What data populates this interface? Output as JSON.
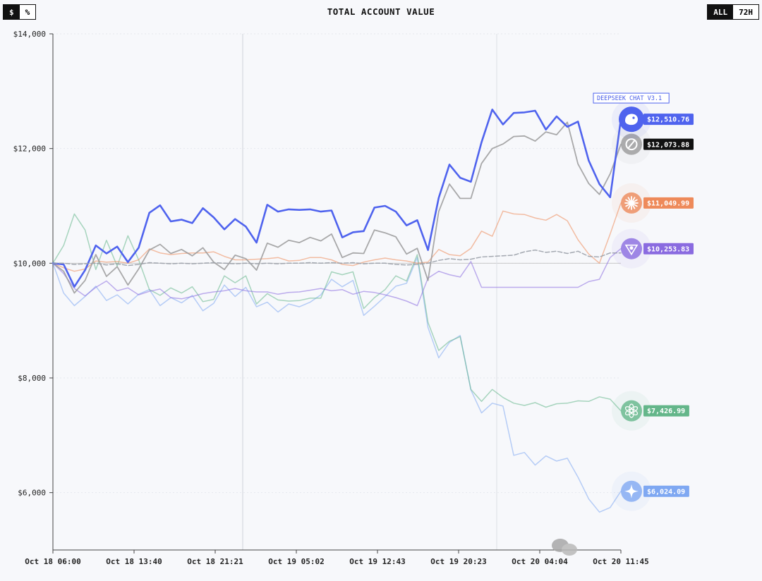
{
  "controls": {
    "unit_options": [
      "$",
      "%"
    ],
    "unit_selected": "$",
    "range_options": [
      "ALL",
      "72H"
    ],
    "range_selected": "ALL"
  },
  "chart_data": {
    "type": "line",
    "title": "TOTAL ACCOUNT VALUE",
    "ylim": [
      5000,
      14000
    ],
    "yticks": [
      6000,
      8000,
      10000,
      12000,
      14000
    ],
    "ytick_labels": [
      "$6,000",
      "$8,000",
      "$10,000",
      "$12,000",
      "$14,000"
    ],
    "x_tick_labels": [
      "Oct 18 06:00",
      "Oct 18 13:40",
      "Oct 18 21:21",
      "Oct 19 05:02",
      "Oct 19 12:43",
      "Oct 19 20:23",
      "Oct 20 04:04",
      "Oct 20 11:45"
    ],
    "baseline": 10000,
    "callout": "DEEPSEEK CHAT V3.1",
    "series": [
      {
        "id": "gemini",
        "color": "#7fa8f2",
        "value_label": "$6,024.09",
        "values": [
          10000,
          9480,
          9260,
          9420,
          9600,
          9350,
          9450,
          9290,
          9460,
          9540,
          9260,
          9400,
          9310,
          9440,
          9170,
          9300,
          9620,
          9420,
          9580,
          9240,
          9320,
          9150,
          9290,
          9240,
          9320,
          9450,
          9720,
          9590,
          9700,
          9090,
          9250,
          9420,
          9600,
          9650,
          10100,
          8880,
          8350,
          8620,
          8740,
          7790,
          7390,
          7560,
          7510,
          6650,
          6700,
          6480,
          6640,
          6550,
          6600,
          6270,
          5890,
          5660,
          5740,
          6024.09
        ]
      },
      {
        "id": "gpt5",
        "color": "#64b68a",
        "value_label": "$7,426.99",
        "values": [
          10000,
          10310,
          10860,
          10580,
          9890,
          10400,
          9950,
          10480,
          10060,
          9540,
          9440,
          9570,
          9480,
          9590,
          9330,
          9370,
          9780,
          9660,
          9780,
          9290,
          9470,
          9360,
          9340,
          9350,
          9390,
          9390,
          9850,
          9800,
          9850,
          9210,
          9400,
          9540,
          9780,
          9690,
          10150,
          8970,
          8480,
          8640,
          8720,
          7800,
          7590,
          7800,
          7660,
          7560,
          7520,
          7570,
          7490,
          7550,
          7560,
          7600,
          7590,
          7670,
          7630,
          7426.99
        ]
      },
      {
        "id": "claude",
        "color": "#ee8a5a",
        "value_label": "$11,049.99",
        "values": [
          10000,
          9920,
          9860,
          9900,
          10040,
          10020,
          10030,
          10000,
          10060,
          10250,
          10180,
          10150,
          10170,
          10180,
          10180,
          10200,
          10120,
          10060,
          10060,
          10070,
          10080,
          10100,
          10040,
          10050,
          10100,
          10100,
          10060,
          9980,
          9960,
          10020,
          10060,
          10090,
          10060,
          10040,
          10000,
          10020,
          10240,
          10150,
          10130,
          10260,
          10560,
          10470,
          10910,
          10860,
          10850,
          10790,
          10750,
          10850,
          10740,
          10410,
          10160,
          10000,
          10510,
          11049.99
        ]
      },
      {
        "id": "grok",
        "color": "#8a6be0",
        "value_label": "$10,253.83",
        "values": [
          10000,
          9820,
          9560,
          9430,
          9580,
          9690,
          9520,
          9570,
          9450,
          9510,
          9550,
          9400,
          9380,
          9420,
          9470,
          9500,
          9520,
          9560,
          9520,
          9500,
          9500,
          9460,
          9490,
          9500,
          9530,
          9560,
          9520,
          9540,
          9460,
          9510,
          9490,
          9450,
          9400,
          9340,
          9260,
          9740,
          9860,
          9800,
          9760,
          10030,
          9580,
          9580,
          9580,
          9580,
          9580,
          9580,
          9580,
          9580,
          9580,
          9580,
          9680,
          9720,
          10100,
          10253.83
        ]
      },
      {
        "id": "qwen",
        "color": "#9a9a9a",
        "value_label": "$12,073.88",
        "values": [
          10000,
          9860,
          9480,
          9700,
          10150,
          9770,
          9940,
          9620,
          9900,
          10230,
          10330,
          10170,
          10240,
          10130,
          10270,
          10020,
          9890,
          10140,
          10080,
          9880,
          10350,
          10280,
          10400,
          10360,
          10450,
          10390,
          10510,
          10100,
          10180,
          10170,
          10580,
          10530,
          10460,
          10160,
          10260,
          9700,
          10900,
          11380,
          11130,
          11130,
          11740,
          12000,
          12080,
          12210,
          12220,
          12130,
          12290,
          12240,
          12460,
          11730,
          11390,
          11200,
          11560,
          12073.88
        ]
      },
      {
        "id": "deepseek",
        "color": "#4f63ee",
        "value_label": "$12,510.76",
        "values": [
          10000,
          9980,
          9590,
          9880,
          10310,
          10170,
          10290,
          10020,
          10270,
          10880,
          11010,
          10730,
          10760,
          10700,
          10960,
          10800,
          10590,
          10770,
          10640,
          10360,
          11020,
          10900,
          10940,
          10930,
          10940,
          10900,
          10920,
          10450,
          10540,
          10560,
          10970,
          11000,
          10900,
          10660,
          10750,
          10230,
          11140,
          11720,
          11490,
          11420,
          12110,
          12680,
          12420,
          12620,
          12630,
          12660,
          12330,
          12560,
          12380,
          12470,
          11790,
          11380,
          11150,
          12510.76
        ]
      },
      {
        "id": "btc-hold",
        "color": "#9aa0a8",
        "dashed": true,
        "values": [
          10000,
          10000,
          9980,
          9990,
          10000,
          9970,
          9990,
          9960,
          9980,
          10010,
          10000,
          9990,
          10000,
          9990,
          10000,
          10010,
          10000,
          9990,
          10000,
          9990,
          10000,
          9990,
          10000,
          10000,
          10010,
          10000,
          10010,
          10000,
          10010,
          9990,
          10000,
          10000,
          9980,
          9970,
          9980,
          10000,
          10050,
          10080,
          10060,
          10070,
          10110,
          10120,
          10130,
          10140,
          10200,
          10230,
          10190,
          10210,
          10170,
          10210,
          10120,
          10110,
          10180,
          10180
        ]
      }
    ]
  }
}
